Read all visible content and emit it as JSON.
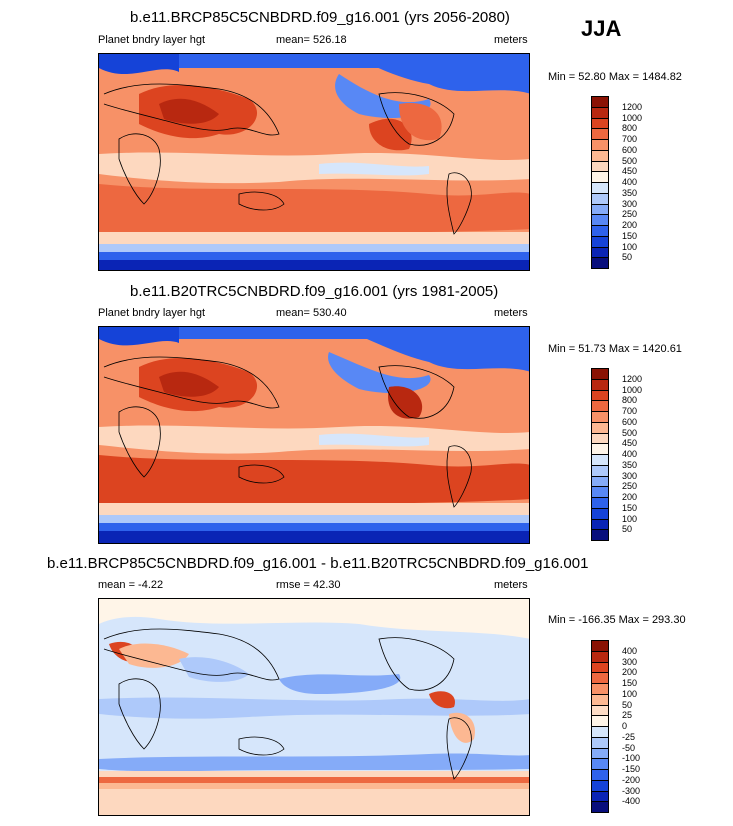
{
  "season": "JJA",
  "palettes": {
    "abs": [
      "#080E7C",
      "#0A24B5",
      "#1543D8",
      "#2E62EC",
      "#5888F5",
      "#85ABF8",
      "#AEC9FA",
      "#D6E6FB",
      "#FFF5E8",
      "#FDD8BF",
      "#FCB892",
      "#F79167",
      "#ED6840",
      "#DC4420",
      "#B82810",
      "#8A1204"
    ],
    "diff": [
      "#080E7C",
      "#0A24B5",
      "#1543D8",
      "#2E62EC",
      "#5888F5",
      "#85ABF8",
      "#AEC9FA",
      "#D6E6FB",
      "#FFF5E8",
      "#FDDCC5",
      "#FCB892",
      "#F79167",
      "#ED6840",
      "#DC4420",
      "#B82810",
      "#8A1204"
    ]
  },
  "panels": [
    {
      "title": "b.e11.BRCP85C5CNBDRD.f09_g16.001 (yrs 2056-2080)",
      "left": "Planet bndry layer hgt",
      "center": "mean= 526.18",
      "right": "meters",
      "minmax": "Min =  52.80 Max = 1484.82",
      "levels": [
        "1200",
        "1000",
        "800",
        "700",
        "600",
        "500",
        "450",
        "400",
        "350",
        "300",
        "250",
        "200",
        "150",
        "100",
        "50"
      ],
      "kind": "abs"
    },
    {
      "title": "b.e11.B20TRC5CNBDRD.f09_g16.001 (yrs 1981-2005)",
      "left": "Planet bndry layer hgt",
      "center": "mean= 530.40",
      "right": "meters",
      "minmax": "Min =  51.73 Max = 1420.61",
      "levels": [
        "1200",
        "1000",
        "800",
        "700",
        "600",
        "500",
        "450",
        "400",
        "350",
        "300",
        "250",
        "200",
        "150",
        "100",
        "50"
      ],
      "kind": "abs"
    },
    {
      "title": "b.e11.BRCP85C5CNBDRD.f09_g16.001 - b.e11.B20TRC5CNBDRD.f09_g16.001",
      "left": "mean =  -4.22",
      "center": "rmse =  42.30",
      "right": "meters",
      "minmax": "Min = -166.35 Max = 293.30",
      "levels": [
        "400",
        "300",
        "200",
        "150",
        "100",
        "50",
        "25",
        "0",
        "-25",
        "-50",
        "-100",
        "-150",
        "-200",
        "-300",
        "-400"
      ],
      "kind": "diff"
    }
  ]
}
